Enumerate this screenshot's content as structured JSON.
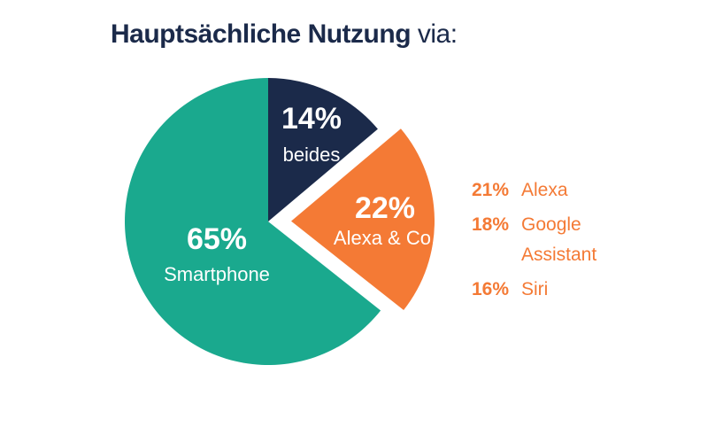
{
  "chart_data": {
    "type": "pie",
    "title": "Hauptsächliche Nutzung",
    "title_suffix": "via:",
    "categories": [
      "beides",
      "Alexa & Co.",
      "Smartphone"
    ],
    "values": [
      14,
      22,
      65
    ],
    "value_labels": [
      "14%",
      "22%",
      "65%"
    ],
    "colors": [
      "#1b2a4a",
      "#f47a35",
      "#1aa98e"
    ],
    "exploded": [
      false,
      true,
      false
    ],
    "breakdown": {
      "color": "#f47a35",
      "categories": [
        "Alexa",
        "Google Assistant",
        "Siri"
      ],
      "values": [
        21,
        18,
        16
      ],
      "value_labels": [
        "21%",
        "18%",
        "16%"
      ]
    }
  }
}
